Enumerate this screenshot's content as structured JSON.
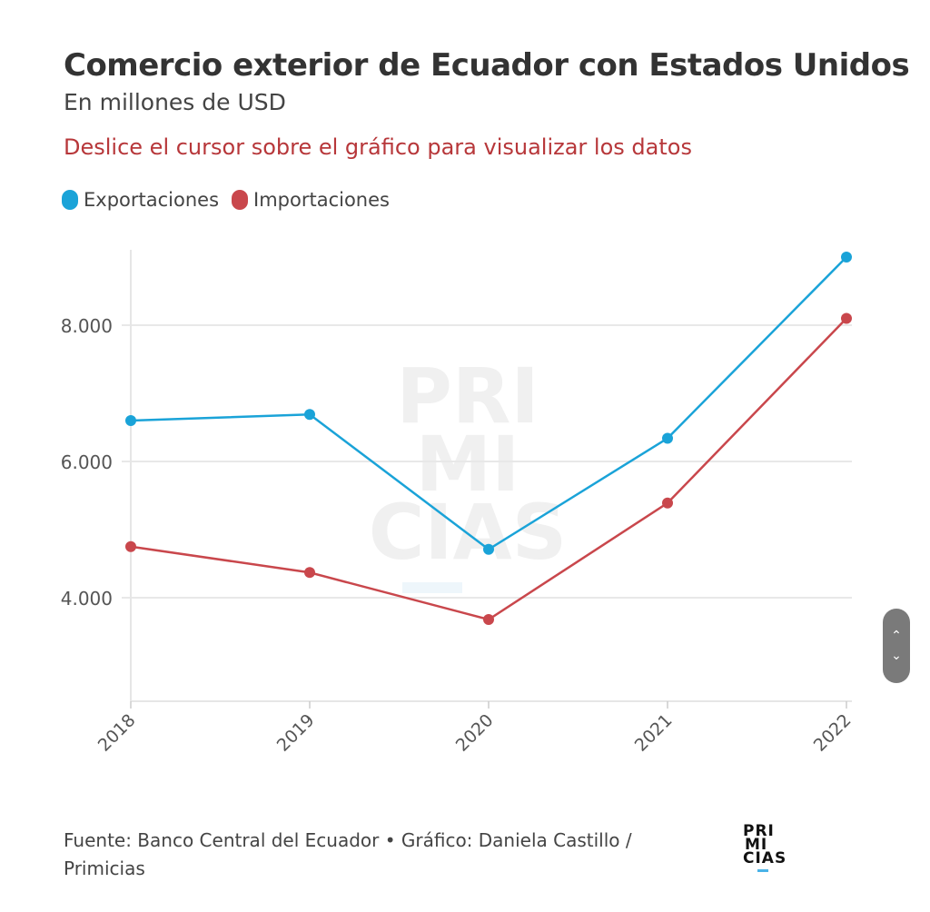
{
  "header": {
    "title": "Comercio exterior de Ecuador con Estados Unidos",
    "subtitle": "En millones de USD",
    "hint": "Deslice el cursor sobre el gráfico para visualizar los datos"
  },
  "legend": [
    {
      "label": "Exportaciones",
      "color": "#1aa3d8"
    },
    {
      "label": "Importaciones",
      "color": "#c9474c"
    }
  ],
  "watermark": [
    "PRI",
    "MI",
    "CIAS"
  ],
  "footer": {
    "source": "Fuente: Banco Central del Ecuador • Gráfico: Daniela Castillo / Primicias"
  },
  "logo": [
    "PRI",
    "MI",
    "CIAS"
  ],
  "scroller": {
    "up_icon": "^",
    "down_icon": "v"
  },
  "chart_data": {
    "type": "line",
    "title": "Comercio exterior de Ecuador con Estados Unidos",
    "subtitle": "En millones de USD",
    "xlabel": "",
    "ylabel": "",
    "categories": [
      "2018",
      "2019",
      "2020",
      "2021",
      "2022"
    ],
    "series": [
      {
        "name": "Exportaciones",
        "color": "#1aa3d8",
        "values": [
          6600,
          6690,
          4710,
          6340,
          9000
        ]
      },
      {
        "name": "Importaciones",
        "color": "#c9474c",
        "values": [
          4750,
          4370,
          3680,
          5390,
          8100
        ]
      }
    ],
    "yticks": [
      4000,
      6000,
      8000
    ],
    "ytick_labels": [
      "4.000",
      "6.000",
      "8.000"
    ],
    "ylim": [
      2500,
      9200
    ],
    "grid": true,
    "legend_position": "top-left"
  }
}
